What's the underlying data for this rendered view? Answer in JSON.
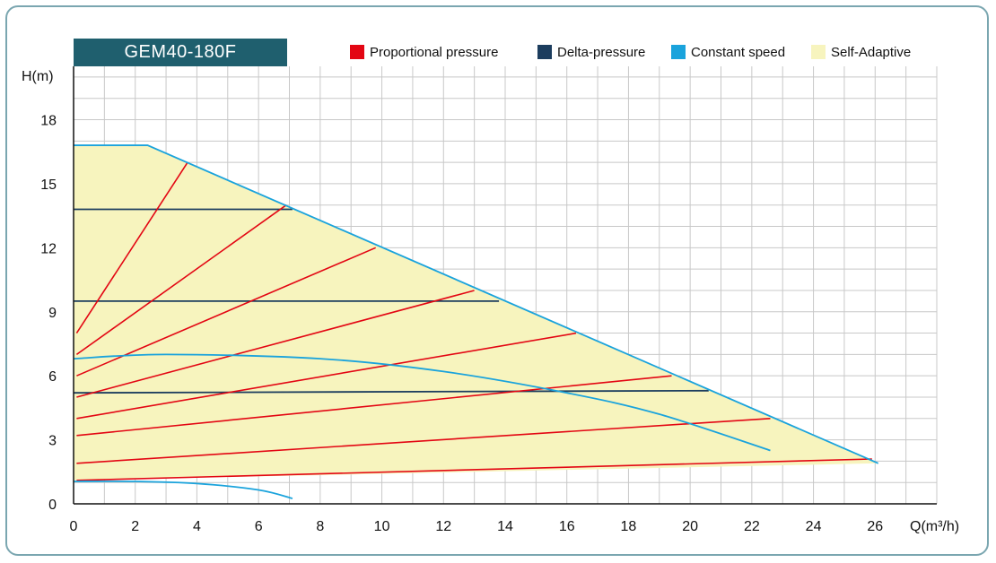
{
  "colors": {
    "proportional": "#e30613",
    "delta": "#1c3d5e",
    "constant": "#1aa3dc",
    "adaptive": "#f7f4be",
    "grid": "#c8c8c8",
    "title_bg": "#1f5f6e"
  },
  "chart_data": {
    "type": "line",
    "title": "GEM40-180F",
    "xlabel": "Q(m³/h)",
    "ylabel": "H(m)",
    "xlim": [
      0,
      28
    ],
    "ylim": [
      0,
      20.5
    ],
    "x_ticks": [
      0,
      2,
      4,
      6,
      8,
      10,
      12,
      14,
      16,
      18,
      20,
      22,
      24,
      26
    ],
    "y_ticks": [
      0,
      3,
      6,
      9,
      12,
      15,
      18
    ],
    "grid": true,
    "legend_position": "top",
    "legend": [
      {
        "label": "Proportional pressure",
        "color_key": "proportional"
      },
      {
        "label": "Delta-pressure",
        "color_key": "delta"
      },
      {
        "label": "Constant speed",
        "color_key": "constant"
      },
      {
        "label": "Self-Adaptive",
        "color_key": "adaptive"
      }
    ],
    "self_adaptive_region": [
      [
        0,
        16.8
      ],
      [
        2.4,
        16.8
      ],
      [
        26.1,
        1.9
      ],
      [
        0,
        1.1
      ]
    ],
    "constant_speed": [
      [
        [
          0,
          16.8
        ],
        [
          2.4,
          16.8
        ],
        [
          26.1,
          1.9
        ]
      ],
      [
        [
          0,
          6.8
        ],
        [
          3,
          7.0
        ],
        [
          8,
          6.8
        ],
        [
          12,
          6.2
        ],
        [
          16,
          5.2
        ],
        [
          19,
          4.2
        ],
        [
          22.6,
          2.5
        ]
      ],
      [
        [
          0,
          1.05
        ],
        [
          2,
          1.05
        ],
        [
          4,
          0.95
        ],
        [
          6,
          0.65
        ],
        [
          7.1,
          0.25
        ]
      ]
    ],
    "delta_pressure": [
      [
        [
          0,
          13.8
        ],
        [
          7.1,
          13.8
        ]
      ],
      [
        [
          0,
          9.5
        ],
        [
          13.8,
          9.5
        ]
      ],
      [
        [
          0,
          5.2
        ],
        [
          20.6,
          5.3
        ]
      ]
    ],
    "proportional_pressure": [
      [
        [
          0.1,
          8.0
        ],
        [
          3.7,
          16.0
        ]
      ],
      [
        [
          0.1,
          7.0
        ],
        [
          6.9,
          14.0
        ]
      ],
      [
        [
          0.1,
          6.0
        ],
        [
          9.8,
          12.0
        ]
      ],
      [
        [
          0.1,
          5.0
        ],
        [
          13.0,
          10.0
        ]
      ],
      [
        [
          0.1,
          4.0
        ],
        [
          16.3,
          8.0
        ]
      ],
      [
        [
          0.1,
          3.2
        ],
        [
          19.4,
          6.0
        ]
      ],
      [
        [
          0.1,
          1.9
        ],
        [
          22.6,
          4.0
        ]
      ],
      [
        [
          0.1,
          1.1
        ],
        [
          25.9,
          2.1
        ]
      ]
    ]
  }
}
